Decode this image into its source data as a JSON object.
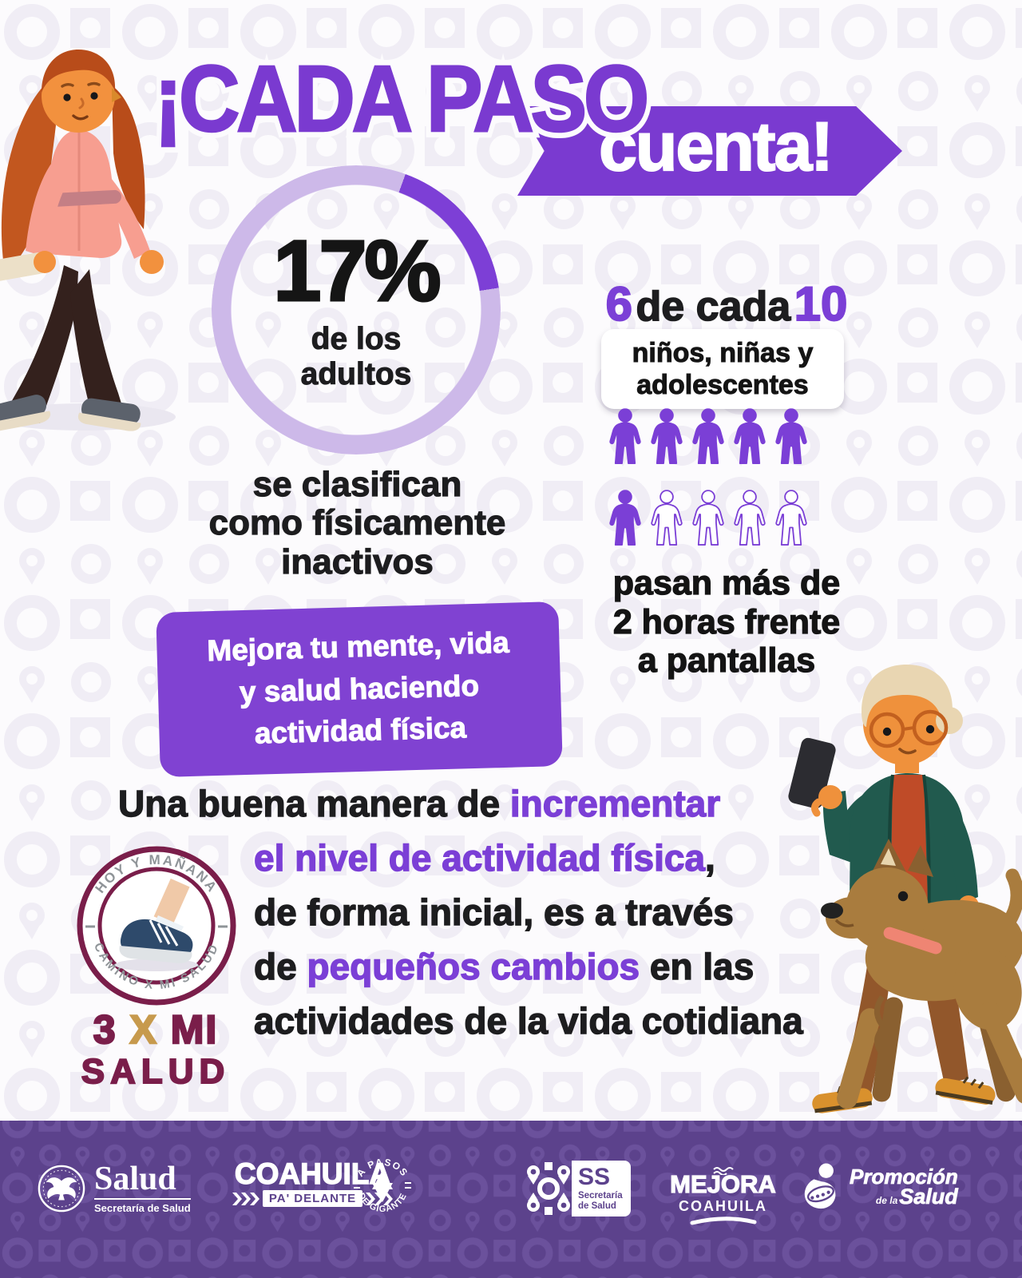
{
  "colors": {
    "purple": "#7a3ad0",
    "purple_text": "#7b3fd6",
    "donut_segment": "#7d3fd6",
    "donut_track": "#cdb9e9",
    "callout_bg": "#8042d2",
    "maroon": "#7a1e4a",
    "gold": "#c79a4d",
    "footer_bg": "#5c428c",
    "black": "#1d1d1f"
  },
  "title": {
    "main": "¡CADA PASO",
    "banner": "cuenta!"
  },
  "chart_data": [
    {
      "type": "pie",
      "variant": "donut",
      "title": "Adultos físicamente inactivos",
      "value_pct": 17,
      "center_label": "17%",
      "center_sublabel": "de los\nadultos",
      "caption": "se clasifican\ncomo físicamente\ninactivos",
      "segment_color": "#7d3fd6",
      "track_color": "#cdb9e9",
      "segment_start_deg": 20
    },
    {
      "type": "pictogram",
      "title": "Niños, niñas y adolescentes frente a pantallas",
      "filled": 6,
      "total": 10,
      "per_row": 5,
      "value_text": "6",
      "unit_text": "de cada",
      "total_text": "10",
      "group_label": "niños, niñas y\nadolescentes",
      "caption": "pasan más de\n2 horas frente\na pantallas",
      "filled_color": "#7b3fd6"
    }
  ],
  "callout": {
    "text": "Mejora tu mente, vida\ny salud haciendo\nactividad física"
  },
  "paragraph": {
    "lines": [
      [
        {
          "t": "Una buena manera de ",
          "c": "dark"
        },
        {
          "t": "incrementar",
          "c": "purple"
        }
      ],
      [
        {
          "t": "el nivel de actividad física",
          "c": "purple"
        },
        {
          "t": ",",
          "c": "dark"
        }
      ],
      [
        {
          "t": "de forma inicial, es a través",
          "c": "dark"
        }
      ],
      [
        {
          "t": "de ",
          "c": "dark"
        },
        {
          "t": "pequeños cambios",
          "c": "purple"
        },
        {
          "t": " en las",
          "c": "dark"
        }
      ],
      [
        {
          "t": "actividades de la vida cotidiana",
          "c": "dark"
        }
      ]
    ]
  },
  "badge": {
    "arc_top": "HOY Y MAÑANA",
    "arc_bottom": "CAMINO X MI SALUD",
    "num": "3",
    "x": "X",
    "mi": "MI",
    "salud": "SALUD"
  },
  "footer": {
    "logos": {
      "salud": {
        "name": "Salud",
        "sub": "Secretaría de Salud"
      },
      "coahuila": {
        "name": "COAHUILA",
        "tagline": "PA' DELANTE"
      },
      "pasos": {
        "arc_top": "A PASOS",
        "arc_bottom": "DE GIGANTE"
      },
      "ss": {
        "abbr": "SS",
        "sub": "Secretaría\nde Salud"
      },
      "mejora": {
        "name": "MEJORA",
        "sub": "COAHUILA"
      },
      "promocion": {
        "line1": "Promoción",
        "line2": "de la",
        "line3": "Salud"
      }
    }
  }
}
